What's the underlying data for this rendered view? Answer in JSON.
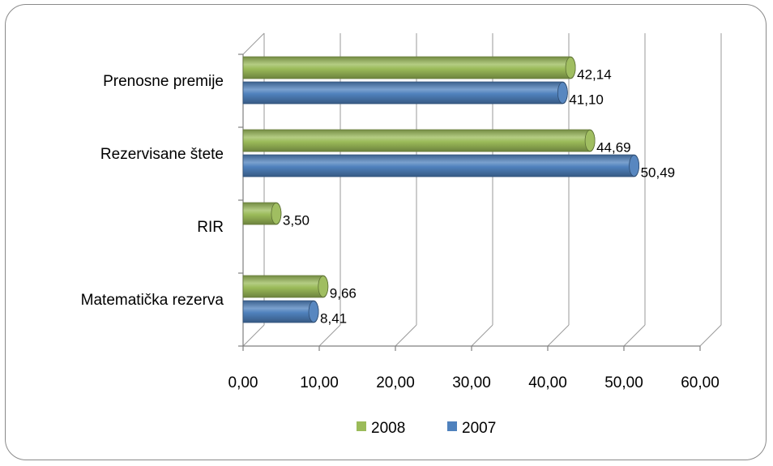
{
  "chart_data": {
    "type": "bar",
    "orientation": "horizontal",
    "categories": [
      "Prenosne premije",
      "Rezervisane štete",
      "RIR",
      "Matematička  rezerva"
    ],
    "series": [
      {
        "name": "2008",
        "values": [
          42.14,
          44.69,
          3.5,
          9.66
        ],
        "labels": [
          "42,14",
          "44,69",
          "3,50",
          "9,66"
        ],
        "color": "#9bbb59"
      },
      {
        "name": "2007",
        "values": [
          41.1,
          50.49,
          null,
          8.41
        ],
        "labels": [
          "41,10",
          "50,49",
          "",
          "8,41"
        ],
        "color": "#4f81bd"
      }
    ],
    "xlim": [
      0,
      60
    ],
    "ticks": [
      0,
      10,
      20,
      30,
      40,
      50,
      60
    ],
    "tick_labels": [
      "0,00",
      "10,00",
      "20,00",
      "30,00",
      "40,00",
      "50,00",
      "60,00"
    ],
    "grid": true,
    "style": "3d-cylinder",
    "legend_position": "bottom"
  }
}
